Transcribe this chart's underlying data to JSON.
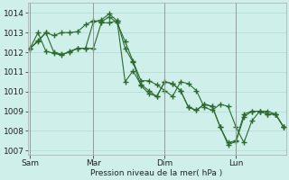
{
  "background_color": "#cff0ea",
  "grid_color": "#b8ddd8",
  "line_color": "#2d6a2d",
  "marker_color": "#2d6a2d",
  "xlabel": "Pression niveau de la mer( hPa )",
  "ylim": [
    1006.8,
    1014.5
  ],
  "yticks": [
    1007,
    1008,
    1009,
    1010,
    1011,
    1012,
    1013,
    1014
  ],
  "xtick_positions": [
    0,
    8,
    17,
    26
  ],
  "xtick_labels": [
    "Sam",
    "Mar",
    "Dim",
    "Lun"
  ],
  "vline_positions": [
    0,
    8,
    17,
    26
  ],
  "n_points": 33,
  "series1": [
    1012.2,
    1012.55,
    1013.0,
    1012.85,
    1013.0,
    1013.0,
    1013.05,
    1013.4,
    1013.6,
    1013.55,
    1013.8,
    1013.5,
    1012.55,
    1011.55,
    1010.55,
    1010.55,
    1010.35,
    1010.05,
    1009.75,
    1010.5,
    1010.4,
    1010.05,
    1009.2,
    1009.05,
    1009.35,
    1009.25,
    1008.2,
    1007.4,
    1008.5,
    1009.0,
    1009.0,
    1008.85,
    1008.2
  ],
  "series2": [
    1012.2,
    1013.0,
    1012.05,
    1011.95,
    1011.85,
    1012.05,
    1012.2,
    1012.2,
    1013.55,
    1013.65,
    1013.95,
    1013.6,
    1010.5,
    1011.05,
    1010.35,
    1010.05,
    1009.75,
    1010.5,
    1010.4,
    1010.05,
    1009.2,
    1009.05,
    1009.35,
    1009.25,
    1008.2,
    1007.4,
    1007.5,
    1008.85,
    1009.0,
    1009.0,
    1008.85,
    1008.85,
    1008.2
  ],
  "series3": [
    1012.2,
    1012.6,
    1013.0,
    1012.0,
    1011.9,
    1012.0,
    1012.2,
    1012.2,
    1012.2,
    1013.5,
    1013.5,
    1013.6,
    1012.2,
    1011.5,
    1010.3,
    1009.9,
    1009.75,
    1010.5,
    1010.4,
    1010.05,
    1009.2,
    1009.05,
    1009.35,
    1009.25,
    1008.2,
    1007.3,
    1007.45,
    1008.7,
    1009.0,
    1009.0,
    1008.85,
    1008.85,
    1008.2
  ]
}
